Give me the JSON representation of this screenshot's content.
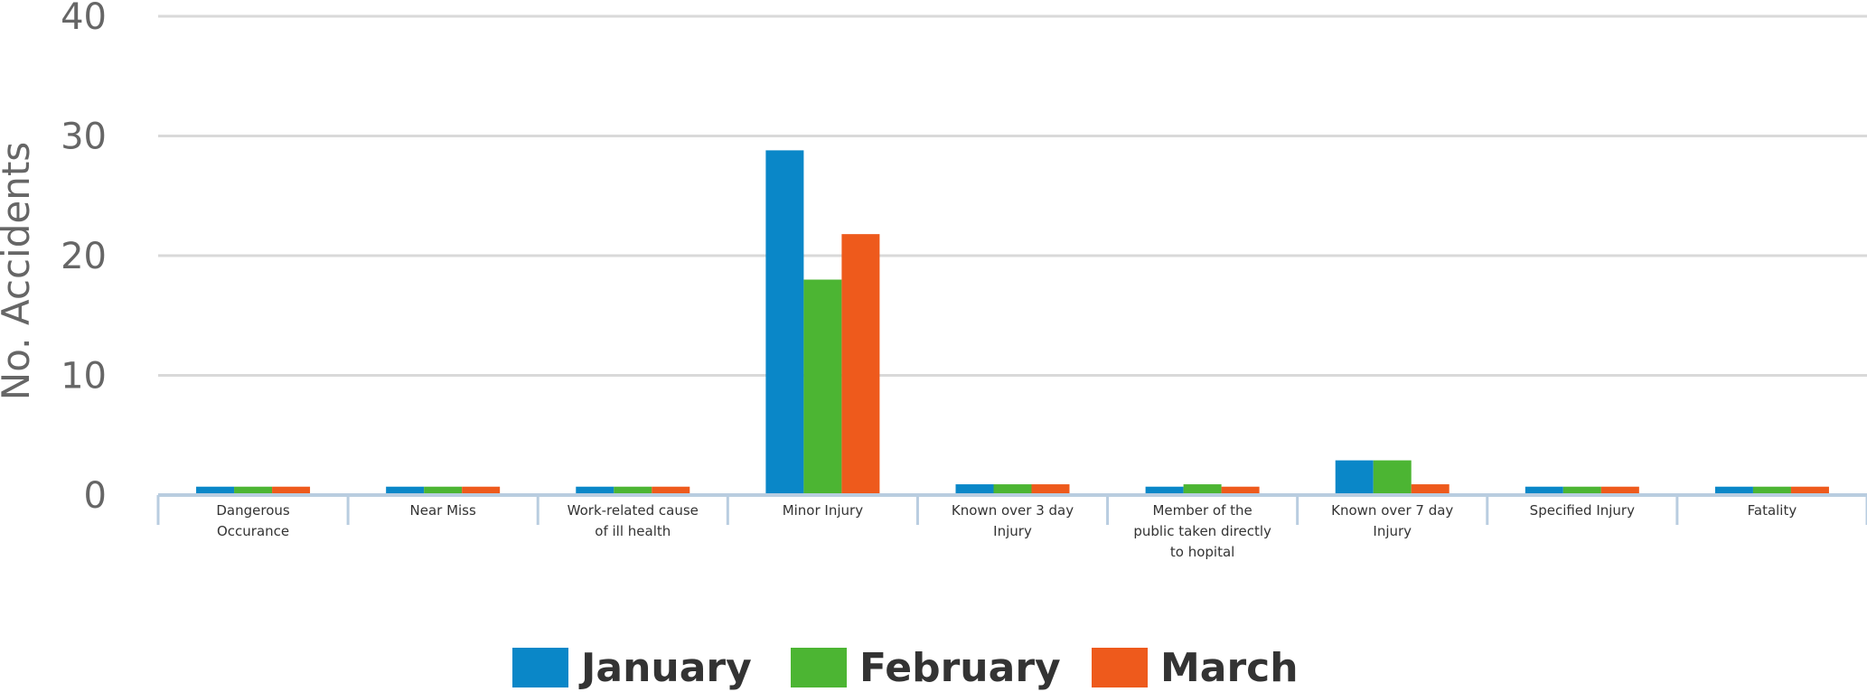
{
  "chart_data": {
    "type": "bar",
    "title": "",
    "xlabel": "",
    "ylabel": "No. Accidents",
    "ylim": [
      0,
      40
    ],
    "yticks": [
      0,
      10,
      20,
      30,
      40
    ],
    "grid": true,
    "legend_position": "bottom",
    "categories": [
      [
        "Dangerous",
        "Occurance"
      ],
      [
        "Near Miss"
      ],
      [
        "Work-related cause",
        "of ill health"
      ],
      [
        "Minor Injury"
      ],
      [
        "Known over 3 day",
        "Injury"
      ],
      [
        "Member of the",
        "public taken directly",
        "to hopital"
      ],
      [
        "Known over 7 day",
        "Injury"
      ],
      [
        "Specified  Injury"
      ],
      [
        "Fatality"
      ]
    ],
    "series": [
      {
        "name": "January",
        "color": "#0a87c8",
        "values": [
          0.7,
          0.7,
          0.7,
          28.8,
          0.9,
          0.7,
          2.9,
          0.7,
          0.7
        ]
      },
      {
        "name": "February",
        "color": "#4cb533",
        "values": [
          0.7,
          0.7,
          0.7,
          18.0,
          0.9,
          0.9,
          2.9,
          0.7,
          0.7
        ]
      },
      {
        "name": "March",
        "color": "#ee5a1c",
        "values": [
          0.7,
          0.7,
          0.7,
          21.8,
          0.9,
          0.7,
          0.9,
          0.7,
          0.7
        ]
      }
    ]
  }
}
